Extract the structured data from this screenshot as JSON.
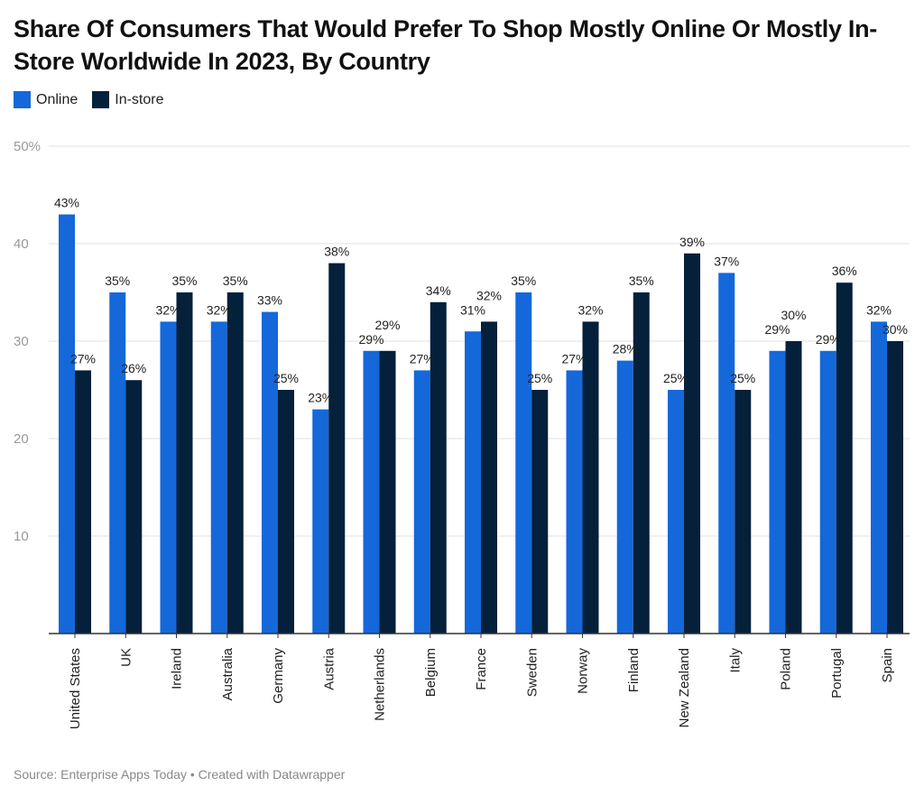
{
  "chart_data": {
    "type": "bar",
    "title": "Share Of Consumers That Would Prefer To Shop Mostly Online Or Mostly In-Store Worldwide In 2023, By Country",
    "categories": [
      "United States",
      "UK",
      "Ireland",
      "Australia",
      "Germany",
      "Austria",
      "Netherlands",
      "Belgium",
      "France",
      "Sweden",
      "Norway",
      "Finland",
      "New Zealand",
      "Italy",
      "Poland",
      "Portugal",
      "Spain"
    ],
    "series": [
      {
        "name": "Online",
        "color": "#1468d9",
        "values": [
          43,
          35,
          32,
          32,
          33,
          23,
          29,
          27,
          31,
          35,
          27,
          28,
          25,
          37,
          29,
          29,
          32
        ]
      },
      {
        "name": "In-store",
        "color": "#04203a",
        "values": [
          27,
          26,
          35,
          35,
          25,
          38,
          29,
          34,
          32,
          25,
          32,
          35,
          39,
          25,
          30,
          36,
          30
        ]
      }
    ],
    "ylim": [
      0,
      50
    ],
    "yticks": [
      {
        "value": 50,
        "label": "50%"
      },
      {
        "value": 40,
        "label": "40"
      },
      {
        "value": 30,
        "label": "30"
      },
      {
        "value": 20,
        "label": "20"
      },
      {
        "value": 10,
        "label": "10"
      }
    ],
    "value_suffix": "%",
    "grid": true,
    "legend": "top-left",
    "xlabel": "",
    "ylabel": ""
  },
  "source": "Source: Enterprise Apps Today • Created with Datawrapper"
}
